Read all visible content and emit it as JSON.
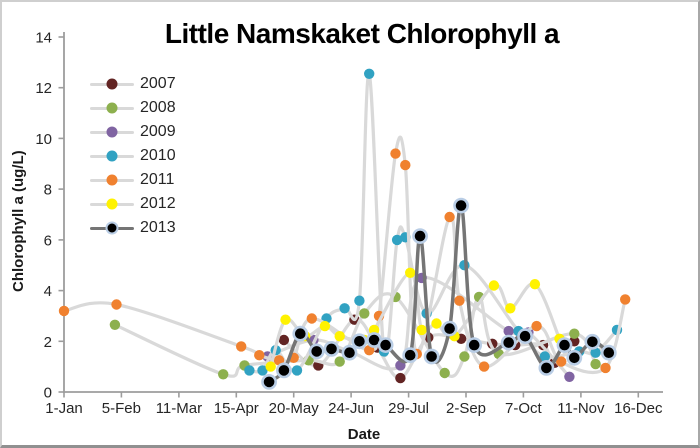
{
  "window": {
    "background": "#ffffff",
    "border_color": "#a8a8a8"
  },
  "chart_data": {
    "type": "line",
    "title": "Little Namskaket Chlorophyll a",
    "xlabel": "Date",
    "ylabel": "Chlorophyll a (ug/L)",
    "ylim": [
      0,
      14
    ],
    "y_ticks": [
      0,
      2,
      4,
      6,
      8,
      10,
      12,
      14
    ],
    "x_tick_labels": [
      "1-Jan",
      "5-Feb",
      "11-Mar",
      "15-Apr",
      "20-May",
      "24-Jun",
      "29-Jul",
      "2-Sep",
      "7-Oct",
      "11-Nov",
      "16-Dec"
    ],
    "x_tick_days": [
      0,
      35,
      70,
      105,
      140,
      175,
      210,
      245,
      280,
      315,
      350
    ],
    "x_is_days_since_jan1": true,
    "grid": false,
    "legend_position": "upper-left-inside",
    "axis_color": "#9d9d9d",
    "default_line_color": "#d9d9d9",
    "series": [
      {
        "name": "2007",
        "marker_color": "#622423",
        "line_color": "#d9d9d9",
        "points": [
          [
            134,
            2.05
          ],
          [
            155,
            1.05
          ],
          [
            177,
            2.85
          ],
          [
            191,
            1.75
          ],
          [
            205,
            0.55
          ],
          [
            222,
            2.15
          ],
          [
            242,
            2.1
          ],
          [
            261,
            1.9
          ],
          [
            275,
            1.85
          ],
          [
            292,
            1.85
          ],
          [
            299,
            1.15
          ],
          [
            311,
            2.0
          ]
        ]
      },
      {
        "name": "2008",
        "marker_color": "#8db04e",
        "line_color": "#d9d9d9",
        "points": [
          [
            31,
            2.65
          ],
          [
            97,
            0.7
          ],
          [
            110,
            1.05
          ],
          [
            149,
            1.25
          ],
          [
            168,
            1.2
          ],
          [
            183,
            3.1
          ],
          [
            202,
            3.75
          ],
          [
            232,
            0.75
          ],
          [
            244,
            1.4
          ],
          [
            253,
            3.75
          ],
          [
            265,
            1.5
          ],
          [
            311,
            2.3
          ],
          [
            324,
            1.1
          ]
        ]
      },
      {
        "name": "2009",
        "marker_color": "#8064a2",
        "line_color": "#d9d9d9",
        "points": [
          [
            124,
            1.4
          ],
          [
            152,
            2.05
          ],
          [
            174,
            1.6
          ],
          [
            205,
            1.05
          ],
          [
            218,
            4.5
          ],
          [
            271,
            2.4
          ],
          [
            283,
            2.35
          ],
          [
            308,
            0.6
          ]
        ]
      },
      {
        "name": "2010",
        "marker_color": "#31a2c2",
        "line_color": "#d9d9d9",
        "points": [
          [
            113,
            0.85
          ],
          [
            121,
            0.85
          ],
          [
            129,
            1.65
          ],
          [
            142,
            0.85
          ],
          [
            160,
            2.9
          ],
          [
            171,
            3.3
          ],
          [
            180,
            3.6
          ],
          [
            186,
            12.55
          ],
          [
            195,
            1.6
          ],
          [
            203,
            6.0
          ],
          [
            208,
            6.1
          ],
          [
            221,
            3.1
          ],
          [
            244,
            5.0
          ],
          [
            277,
            2.4
          ],
          [
            293,
            1.4
          ],
          [
            314,
            1.6
          ],
          [
            324,
            1.55
          ],
          [
            337,
            2.45
          ]
        ]
      },
      {
        "name": "2011",
        "marker_color": "#f0812f",
        "line_color": "#d9d9d9",
        "points": [
          [
            0,
            3.2
          ],
          [
            32,
            3.45
          ],
          [
            108,
            1.8
          ],
          [
            119,
            1.45
          ],
          [
            131,
            1.25
          ],
          [
            140,
            1.35
          ],
          [
            151,
            2.9
          ],
          [
            186,
            1.65
          ],
          [
            192,
            3.0
          ],
          [
            202,
            9.4
          ],
          [
            208,
            8.95
          ],
          [
            215,
            1.5
          ],
          [
            235,
            6.9
          ],
          [
            241,
            3.6
          ],
          [
            256,
            1.0
          ],
          [
            288,
            2.6
          ],
          [
            303,
            1.2
          ],
          [
            330,
            0.95
          ],
          [
            342,
            3.65
          ]
        ]
      },
      {
        "name": "2012",
        "marker_color": "#fff200",
        "line_color": "#d9d9d9",
        "points": [
          [
            126,
            1.0
          ],
          [
            135,
            2.85
          ],
          [
            147,
            2.2
          ],
          [
            159,
            2.6
          ],
          [
            168,
            2.2
          ],
          [
            183,
            2.05
          ],
          [
            189,
            2.45
          ],
          [
            211,
            4.7
          ],
          [
            218,
            2.45
          ],
          [
            227,
            2.7
          ],
          [
            238,
            2.2
          ],
          [
            262,
            4.2
          ],
          [
            272,
            3.3
          ],
          [
            287,
            4.25
          ],
          [
            302,
            2.1
          ]
        ]
      },
      {
        "name": "2013",
        "marker_color": "#000000",
        "marker_outline": "#b9cde5",
        "line_color": "#757575",
        "points": [
          [
            125,
            0.4
          ],
          [
            134,
            0.85
          ],
          [
            144,
            2.3
          ],
          [
            154,
            1.6
          ],
          [
            163,
            1.7
          ],
          [
            174,
            1.55
          ],
          [
            180,
            2.0
          ],
          [
            189,
            2.05
          ],
          [
            196,
            1.85
          ],
          [
            211,
            1.45
          ],
          [
            217,
            6.15
          ],
          [
            224,
            1.4
          ],
          [
            235,
            2.5
          ],
          [
            242,
            7.35
          ],
          [
            250,
            1.85
          ],
          [
            271,
            1.95
          ],
          [
            281,
            2.2
          ],
          [
            294,
            0.95
          ],
          [
            305,
            1.85
          ],
          [
            311,
            1.35
          ],
          [
            322,
            1.98
          ],
          [
            332,
            1.55
          ]
        ]
      }
    ]
  }
}
